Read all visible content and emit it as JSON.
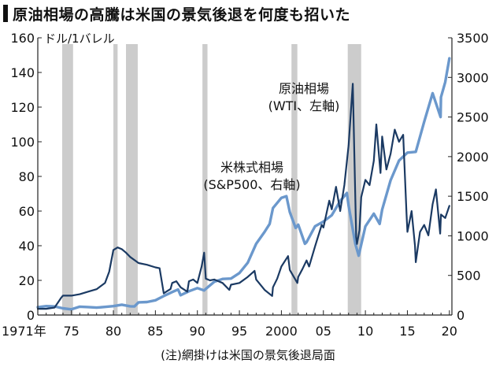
{
  "title": "原油相場の高騰は米国の景気後退を何度も招いた",
  "note": "(注)網掛けは米国の景気後退局面",
  "colors": {
    "oil": "#1b3a63",
    "sp500": "#6b98cc",
    "recession": "#cccccc",
    "axis": "#222222"
  },
  "chart_data": {
    "type": "line",
    "x_range": [
      1971,
      2020.3
    ],
    "x_ticks": [
      {
        "x": 1971,
        "label": "1971年"
      },
      {
        "x": 1975,
        "label": "75"
      },
      {
        "x": 1980,
        "label": "80"
      },
      {
        "x": 1985,
        "label": "85"
      },
      {
        "x": 1990,
        "label": "90"
      },
      {
        "x": 1995,
        "label": "95"
      },
      {
        "x": 2000,
        "label": "2000"
      },
      {
        "x": 2005,
        "label": "05"
      },
      {
        "x": 2010,
        "label": "10"
      },
      {
        "x": 2015,
        "label": "15"
      },
      {
        "x": 2020,
        "label": "20"
      }
    ],
    "y_left": {
      "unit_label": "ドル/1バレル",
      "range": [
        0,
        160
      ],
      "ticks": [
        0,
        20,
        40,
        60,
        80,
        100,
        120,
        140,
        160
      ]
    },
    "y_right": {
      "range": [
        0,
        3500
      ],
      "ticks": [
        0,
        500,
        1000,
        1500,
        2000,
        2500,
        3000,
        3500
      ]
    },
    "recessions": [
      [
        1973.9,
        1975.2
      ],
      [
        1980.0,
        1980.5
      ],
      [
        1981.5,
        1982.9
      ],
      [
        1990.6,
        1991.2
      ],
      [
        2001.2,
        2001.9
      ],
      [
        2007.9,
        2009.5
      ]
    ],
    "series": [
      {
        "name": "原油相場",
        "label_lines": [
          "原油相場",
          "(WTI、左軸)"
        ],
        "axis": "left",
        "x": [
          1971,
          1972,
          1973,
          1973.8,
          1974,
          1975,
          1976,
          1977,
          1978,
          1979,
          1979.5,
          1980,
          1980.5,
          1981,
          1981.5,
          1982,
          1983,
          1984,
          1985,
          1985.5,
          1986,
          1986.3,
          1986.8,
          1987,
          1987.5,
          1988,
          1988.8,
          1989,
          1989.5,
          1990,
          1990.5,
          1990.8,
          1991,
          1991.5,
          1992,
          1993,
          1993.8,
          1994,
          1995,
          1996,
          1996.8,
          1997,
          1998,
          1998.9,
          1999,
          1999.5,
          2000,
          2000.8,
          2001,
          2001.9,
          2002,
          2002.5,
          2003,
          2003.3,
          2004,
          2004.8,
          2005,
          2005.7,
          2006,
          2006.5,
          2007,
          2007.5,
          2008,
          2008.5,
          2008.9,
          2009,
          2009.3,
          2009.5,
          2010,
          2010.5,
          2011,
          2011.3,
          2011.8,
          2012,
          2012.5,
          2013,
          2013.5,
          2014,
          2014.5,
          2014.9,
          2015,
          2015.5,
          2015.9,
          2016,
          2016.5,
          2017,
          2017.5,
          2018,
          2018.4,
          2018.9,
          2019,
          2019.5,
          2020
        ],
        "values": [
          3.6,
          3.6,
          4.3,
          10.1,
          11.2,
          11.2,
          12.0,
          13.5,
          14.9,
          18.5,
          25.0,
          37.5,
          39.0,
          38.0,
          36.0,
          33.5,
          30.0,
          29.0,
          27.5,
          27.0,
          12.5,
          13.5,
          15.0,
          18.5,
          19.5,
          16.0,
          13.5,
          19.5,
          20.5,
          18.5,
          28.0,
          36.0,
          21.0,
          20.0,
          20.5,
          18.5,
          14.5,
          17.5,
          18.5,
          22.0,
          25.5,
          20.5,
          14.5,
          11.0,
          16.0,
          21.0,
          28.0,
          34.0,
          26.0,
          18.5,
          22.0,
          26.5,
          31.5,
          28.0,
          39.5,
          52.0,
          50.5,
          66.0,
          61.0,
          74.0,
          60.0,
          75.0,
          98.0,
          133.5,
          45.0,
          41.0,
          49.0,
          68.0,
          78.0,
          75.0,
          89.0,
          110.0,
          82.0,
          103.0,
          84.0,
          93.0,
          107.0,
          100.0,
          104.0,
          58.0,
          48.0,
          60.0,
          40.0,
          30.5,
          48.0,
          52.0,
          46.0,
          64.0,
          72.5,
          47.0,
          58.0,
          56.0,
          63.0
        ]
      },
      {
        "name": "米株式相場",
        "label_lines": [
          "米株式相場",
          "(S&P500、右軸)"
        ],
        "axis": "right",
        "x": [
          1971,
          1972,
          1973,
          1974,
          1975,
          1976,
          1977,
          1978,
          1979,
          1980,
          1981,
          1982,
          1982.5,
          1983,
          1984,
          1985,
          1986,
          1987,
          1987.7,
          1988,
          1989,
          1990,
          1990.8,
          1991,
          1992,
          1993,
          1994,
          1995,
          1996,
          1997,
          1998,
          1998.6,
          1999,
          2000,
          2000.6,
          2001,
          2001.7,
          2002,
          2002.8,
          2003,
          2004,
          2005,
          2006,
          2007,
          2007.8,
          2008,
          2008.8,
          2009.2,
          2010,
          2011,
          2011.7,
          2012,
          2013,
          2014,
          2015,
          2016,
          2017,
          2018,
          2018.95,
          2019,
          2019.5,
          2020
        ],
        "values": [
          98,
          112,
          108,
          85,
          72,
          105,
          100,
          93,
          102,
          112,
          130,
          110,
          108,
          160,
          164,
          186,
          240,
          290,
          322,
          250,
          300,
          340,
          310,
          330,
          420,
          455,
          460,
          530,
          660,
          900,
          1050,
          1150,
          1350,
          1480,
          1500,
          1300,
          1100,
          1140,
          900,
          920,
          1120,
          1180,
          1260,
          1440,
          1540,
          1380,
          900,
          750,
          1120,
          1280,
          1150,
          1330,
          1700,
          1950,
          2050,
          2060,
          2440,
          2800,
          2500,
          2750,
          2940,
          3240
        ]
      }
    ]
  }
}
